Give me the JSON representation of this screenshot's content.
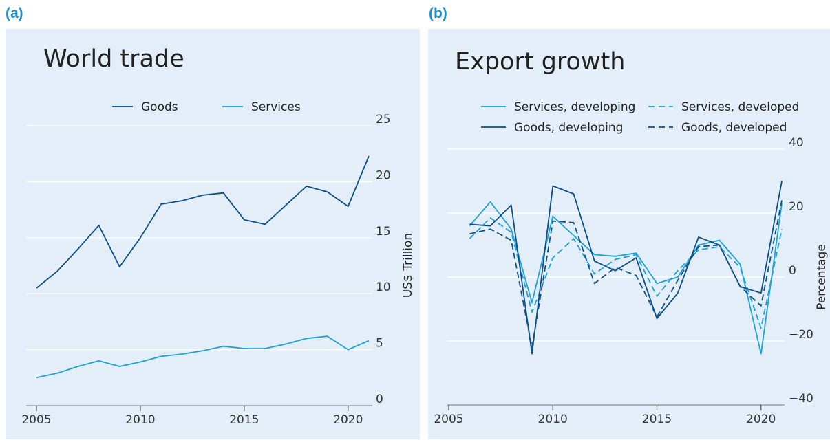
{
  "panel_labels": [
    "(a)",
    "(b)"
  ],
  "chart_data": [
    {
      "type": "line",
      "title": "World trade",
      "xlabel": "",
      "ylabel": "US$ Trillion",
      "xlim": [
        2005,
        2021
      ],
      "ylim": [
        0,
        25
      ],
      "xticks": [
        2005,
        2010,
        2015,
        2020
      ],
      "yticks": [
        0,
        5,
        10,
        15,
        20,
        25
      ],
      "grid": true,
      "legend_position": "top",
      "x": [
        2005,
        2006,
        2007,
        2008,
        2009,
        2010,
        2011,
        2012,
        2013,
        2014,
        2015,
        2016,
        2017,
        2018,
        2019,
        2020,
        2021
      ],
      "series": [
        {
          "name": "Goods",
          "color": "#0b4f8a",
          "dash": "solid",
          "values": [
            10.5,
            12,
            14,
            16.1,
            12.4,
            15,
            18,
            18.3,
            18.8,
            19,
            16.6,
            16.2,
            17.9,
            19.6,
            19.1,
            17.8,
            22.3
          ]
        },
        {
          "name": "Services",
          "color": "#1ea1d6",
          "dash": "solid",
          "values": [
            2.5,
            2.9,
            3.5,
            4,
            3.5,
            3.9,
            4.4,
            4.6,
            4.9,
            5.3,
            5.1,
            5.1,
            5.5,
            6,
            6.2,
            5,
            5.8
          ]
        }
      ]
    },
    {
      "type": "line",
      "title": "Export growth",
      "xlabel": "",
      "ylabel": "Percentage",
      "xlim": [
        2005,
        2021
      ],
      "ylim": [
        -40,
        40
      ],
      "xticks": [
        2005,
        2010,
        2015,
        2020
      ],
      "yticks": [
        -40,
        -20,
        0,
        20,
        40
      ],
      "ytick_labels": [
        "−40",
        "−20",
        "0",
        "20",
        "40"
      ],
      "grid": true,
      "legend_position": "top",
      "x": [
        2006,
        2007,
        2008,
        2009,
        2010,
        2011,
        2012,
        2013,
        2014,
        2015,
        2016,
        2017,
        2018,
        2019,
        2020,
        2021
      ],
      "series": [
        {
          "name": "Services, developing",
          "color": "#1ea1d6",
          "dash": "solid",
          "values": [
            16,
            23.5,
            15,
            -8,
            19,
            13,
            7,
            6.5,
            7.5,
            -2,
            0,
            10,
            11.5,
            4,
            -24,
            23
          ]
        },
        {
          "name": "Services, developed",
          "color": "#1ea1d6",
          "dash": "dashed",
          "values": [
            12,
            18.5,
            14,
            -11,
            6,
            12,
            1,
            5.5,
            7,
            -6,
            2,
            8.5,
            9.5,
            3,
            -16,
            15
          ]
        },
        {
          "name": "Goods, developing",
          "color": "#0b4f8a",
          "dash": "solid",
          "values": [
            16.5,
            16,
            22.5,
            -24,
            28.5,
            26,
            5,
            2,
            6,
            -13,
            -5,
            12.5,
            10,
            -3,
            -5,
            30
          ]
        },
        {
          "name": "Goods, developed",
          "color": "#0b4f8a",
          "dash": "dashed",
          "values": [
            13.5,
            15,
            11.5,
            -22,
            17.5,
            17,
            -2,
            3,
            0.5,
            -12.5,
            -1,
            9.5,
            10,
            -3,
            -9,
            24
          ]
        }
      ]
    }
  ]
}
